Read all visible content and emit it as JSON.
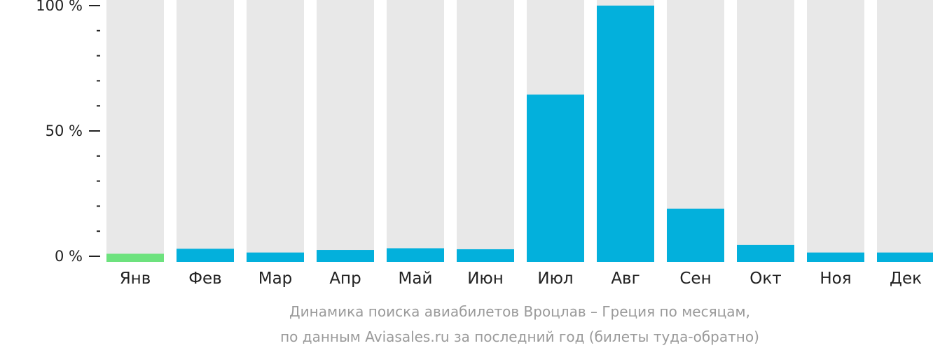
{
  "chart_data": {
    "type": "bar",
    "categories": [
      "Янв",
      "Фев",
      "Мар",
      "Апр",
      "Май",
      "Июн",
      "Июл",
      "Авг",
      "Сен",
      "Окт",
      "Ноя",
      "Дек"
    ],
    "values": [
      1,
      3,
      1.5,
      2.5,
      3.2,
      2.8,
      64.5,
      100,
      19,
      4.5,
      1.5,
      1.5
    ],
    "ylim": [
      0,
      100
    ],
    "y_ticks": [
      "0 %",
      "50 %",
      "100 %"
    ],
    "y_tick_values": [
      0,
      50,
      100
    ],
    "y_minor_step": 10,
    "caption_line1": "Динамика поиска авиабилетов Вроцлав – Греция по месяцам,",
    "caption_line2": "по данным Aviasales.ru за последний год (билеты туда-обратно)",
    "colors": {
      "bar": "#03b0dc",
      "highlight_bar": "#6de27e",
      "track": "#e8e8e8",
      "axis": "#222222"
    },
    "highlight_index": 0
  }
}
